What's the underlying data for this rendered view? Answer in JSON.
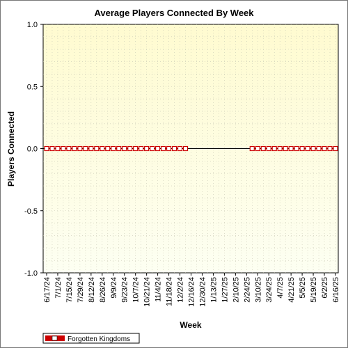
{
  "chart_data": {
    "type": "line",
    "title": "Average Players Connected By Week",
    "xlabel": "Week",
    "ylabel": "Players Connected",
    "ylim": [
      -1.0,
      1.0
    ],
    "y_ticks": [
      "1.0",
      "0.5",
      "0.0",
      "-0.5",
      "-1.0"
    ],
    "x_tick_labels": [
      "6/17/24",
      "7/1/24",
      "7/15/24",
      "7/29/24",
      "8/12/24",
      "8/26/24",
      "9/9/24",
      "9/23/24",
      "10/7/24",
      "10/21/24",
      "11/4/24",
      "11/18/24",
      "12/2/24",
      "12/16/24",
      "12/30/24",
      "1/13/25",
      "1/27/25",
      "2/10/25",
      "2/24/25",
      "3/10/25",
      "3/24/25",
      "4/7/25",
      "4/21/25",
      "5/5/25",
      "5/19/25",
      "6/2/25",
      "6/16/25"
    ],
    "x_count": 53,
    "grid": true,
    "legend_position": "bottom-left",
    "plot_background": "#fffde0",
    "series": [
      {
        "name": "Forgotten Kingdoms",
        "color": "#cc0000",
        "points": [
          {
            "week": "6/17/24",
            "value": 0
          },
          {
            "week": "6/24/24",
            "value": 0
          },
          {
            "week": "7/1/24",
            "value": 0
          },
          {
            "week": "7/8/24",
            "value": 0
          },
          {
            "week": "7/15/24",
            "value": 0
          },
          {
            "week": "7/22/24",
            "value": 0
          },
          {
            "week": "7/29/24",
            "value": 0
          },
          {
            "week": "8/5/24",
            "value": 0
          },
          {
            "week": "8/12/24",
            "value": 0
          },
          {
            "week": "8/19/24",
            "value": 0
          },
          {
            "week": "8/26/24",
            "value": 0
          },
          {
            "week": "9/2/24",
            "value": 0
          },
          {
            "week": "9/9/24",
            "value": 0
          },
          {
            "week": "9/16/24",
            "value": 0
          },
          {
            "week": "9/23/24",
            "value": 0
          },
          {
            "week": "9/30/24",
            "value": 0
          },
          {
            "week": "10/7/24",
            "value": 0
          },
          {
            "week": "10/14/24",
            "value": 0
          },
          {
            "week": "10/21/24",
            "value": 0
          },
          {
            "week": "10/28/24",
            "value": 0
          },
          {
            "week": "11/4/24",
            "value": 0
          },
          {
            "week": "11/11/24",
            "value": 0
          },
          {
            "week": "11/18/24",
            "value": 0
          },
          {
            "week": "11/25/24",
            "value": 0
          },
          {
            "week": "12/2/24",
            "value": 0
          },
          {
            "week": "12/9/24",
            "value": 0
          },
          {
            "week": "3/3/25",
            "value": 0
          },
          {
            "week": "3/10/25",
            "value": 0
          },
          {
            "week": "3/17/25",
            "value": 0
          },
          {
            "week": "3/24/25",
            "value": 0
          },
          {
            "week": "3/31/25",
            "value": 0
          },
          {
            "week": "4/7/25",
            "value": 0
          },
          {
            "week": "4/14/25",
            "value": 0
          },
          {
            "week": "4/21/25",
            "value": 0
          },
          {
            "week": "4/28/25",
            "value": 0
          },
          {
            "week": "5/5/25",
            "value": 0
          },
          {
            "week": "5/12/25",
            "value": 0
          },
          {
            "week": "5/19/25",
            "value": 0
          },
          {
            "week": "5/26/25",
            "value": 0
          },
          {
            "week": "6/2/25",
            "value": 0
          },
          {
            "week": "6/9/25",
            "value": 0
          },
          {
            "week": "6/16/25",
            "value": 0
          }
        ]
      }
    ]
  }
}
